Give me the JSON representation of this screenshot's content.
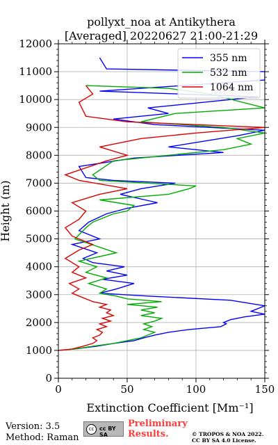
{
  "chart_data": {
    "type": "line",
    "title": [
      "pollyxt_noa at Antikythera",
      "[Averaged] 20220627 21:00-21:29"
    ],
    "xlabel": "Extinction Coefficient [Mm⁻¹]",
    "ylabel": "Height (m)",
    "xlim": [
      0,
      150
    ],
    "ylim": [
      0,
      12000
    ],
    "xticks": [
      0,
      50,
      100,
      150
    ],
    "yticks": [
      0,
      1000,
      2000,
      3000,
      4000,
      5000,
      6000,
      7000,
      8000,
      9000,
      10000,
      11000,
      12000
    ],
    "grid": true,
    "legend_position": "top-right",
    "series": [
      {
        "name": "355 nm",
        "color": "#0000ff",
        "points": [
          [
            0,
            1000
          ],
          [
            12,
            1050
          ],
          [
            28,
            1150
          ],
          [
            40,
            1250
          ],
          [
            55,
            1350
          ],
          [
            62,
            1450
          ],
          [
            70,
            1550
          ],
          [
            80,
            1650
          ],
          [
            95,
            1750
          ],
          [
            118,
            1850
          ],
          [
            122,
            1950
          ],
          [
            120,
            2000
          ],
          [
            125,
            2100
          ],
          [
            135,
            2200
          ],
          [
            150,
            2300
          ],
          [
            140,
            2400
          ],
          [
            145,
            2500
          ],
          [
            150,
            2600
          ],
          [
            125,
            2800
          ],
          [
            65,
            2950
          ],
          [
            30,
            3050
          ],
          [
            42,
            3200
          ],
          [
            55,
            3400
          ],
          [
            32,
            3550
          ],
          [
            50,
            3700
          ],
          [
            35,
            3850
          ],
          [
            48,
            4000
          ],
          [
            25,
            4150
          ],
          [
            18,
            4300
          ],
          [
            28,
            4500
          ],
          [
            10,
            4800
          ],
          [
            30,
            5000
          ],
          [
            15,
            5300
          ],
          [
            22,
            5600
          ],
          [
            35,
            5900
          ],
          [
            50,
            6100
          ],
          [
            72,
            6300
          ],
          [
            45,
            6600
          ],
          [
            60,
            6800
          ],
          [
            85,
            7000
          ],
          [
            40,
            7100
          ],
          [
            20,
            7200
          ],
          [
            15,
            7600
          ],
          [
            55,
            7900
          ],
          [
            120,
            8100
          ],
          [
            80,
            8300
          ],
          [
            130,
            8700
          ],
          [
            150,
            8900
          ],
          [
            70,
            9100
          ],
          [
            40,
            9300
          ],
          [
            80,
            9500
          ],
          [
            65,
            9700
          ],
          [
            145,
            10100
          ],
          [
            30,
            10300
          ],
          [
            150,
            10700
          ],
          [
            150,
            11000
          ],
          [
            35,
            11100
          ],
          [
            30,
            11500
          ]
        ]
      },
      {
        "name": "532 nm",
        "color": "#00aa00",
        "points": [
          [
            0,
            1000
          ],
          [
            12,
            1050
          ],
          [
            25,
            1150
          ],
          [
            40,
            1250
          ],
          [
            50,
            1350
          ],
          [
            60,
            1450
          ],
          [
            65,
            1550
          ],
          [
            70,
            1650
          ],
          [
            62,
            1750
          ],
          [
            68,
            1850
          ],
          [
            62,
            1950
          ],
          [
            70,
            2050
          ],
          [
            75,
            2150
          ],
          [
            60,
            2250
          ],
          [
            70,
            2350
          ],
          [
            60,
            2450
          ],
          [
            72,
            2550
          ],
          [
            50,
            2650
          ],
          [
            75,
            2750
          ],
          [
            50,
            2850
          ],
          [
            42,
            2950
          ],
          [
            30,
            3050
          ],
          [
            35,
            3200
          ],
          [
            22,
            3400
          ],
          [
            35,
            3600
          ],
          [
            20,
            3800
          ],
          [
            28,
            4000
          ],
          [
            15,
            4200
          ],
          [
            42,
            4500
          ],
          [
            30,
            4700
          ],
          [
            12,
            5000
          ],
          [
            20,
            5400
          ],
          [
            25,
            5600
          ],
          [
            40,
            5900
          ],
          [
            50,
            6000
          ],
          [
            55,
            6200
          ],
          [
            30,
            6400
          ],
          [
            80,
            6600
          ],
          [
            95,
            6800
          ],
          [
            100,
            6900
          ],
          [
            30,
            7100
          ],
          [
            25,
            7300
          ],
          [
            40,
            7800
          ],
          [
            80,
            8000
          ],
          [
            120,
            8200
          ],
          [
            140,
            8400
          ],
          [
            130,
            8600
          ],
          [
            150,
            8800
          ],
          [
            120,
            9000
          ],
          [
            60,
            9200
          ],
          [
            85,
            9500
          ],
          [
            150,
            9700
          ],
          [
            110,
            10200
          ],
          [
            80,
            10400
          ],
          [
            20,
            10500
          ]
        ]
      },
      {
        "name": "1064 nm",
        "color": "#dd0000",
        "points": [
          [
            0,
            1000
          ],
          [
            10,
            1050
          ],
          [
            18,
            1150
          ],
          [
            25,
            1250
          ],
          [
            28,
            1350
          ],
          [
            25,
            1450
          ],
          [
            30,
            1550
          ],
          [
            32,
            1650
          ],
          [
            28,
            1750
          ],
          [
            35,
            1850
          ],
          [
            30,
            1950
          ],
          [
            38,
            2050
          ],
          [
            32,
            2150
          ],
          [
            40,
            2250
          ],
          [
            35,
            2350
          ],
          [
            38,
            2450
          ],
          [
            30,
            2550
          ],
          [
            35,
            2650
          ],
          [
            25,
            2750
          ],
          [
            20,
            2850
          ],
          [
            15,
            2950
          ],
          [
            10,
            3050
          ],
          [
            15,
            3200
          ],
          [
            8,
            3400
          ],
          [
            20,
            3600
          ],
          [
            10,
            3800
          ],
          [
            15,
            4000
          ],
          [
            5,
            4300
          ],
          [
            15,
            4600
          ],
          [
            25,
            4800
          ],
          [
            10,
            5100
          ],
          [
            5,
            5400
          ],
          [
            15,
            5700
          ],
          [
            20,
            6000
          ],
          [
            10,
            6300
          ],
          [
            30,
            6600
          ],
          [
            50,
            6800
          ],
          [
            15,
            7100
          ],
          [
            5,
            7300
          ],
          [
            35,
            7800
          ],
          [
            50,
            8000
          ],
          [
            30,
            8300
          ],
          [
            60,
            8600
          ],
          [
            100,
            8800
          ],
          [
            150,
            9000
          ],
          [
            50,
            9200
          ],
          [
            20,
            9400
          ],
          [
            15,
            9900
          ],
          [
            25,
            10200
          ],
          [
            20,
            10500
          ]
        ]
      }
    ]
  },
  "footer": {
    "version": "Version: 3.5",
    "method": "Method: Raman",
    "license_badge": "cc BY SA",
    "preliminary_1": "Preliminary",
    "preliminary_2": "Results.",
    "copyright_1": "© TROPOS & NOA 2022.",
    "copyright_2": "CC BY SA 4.0 License."
  }
}
